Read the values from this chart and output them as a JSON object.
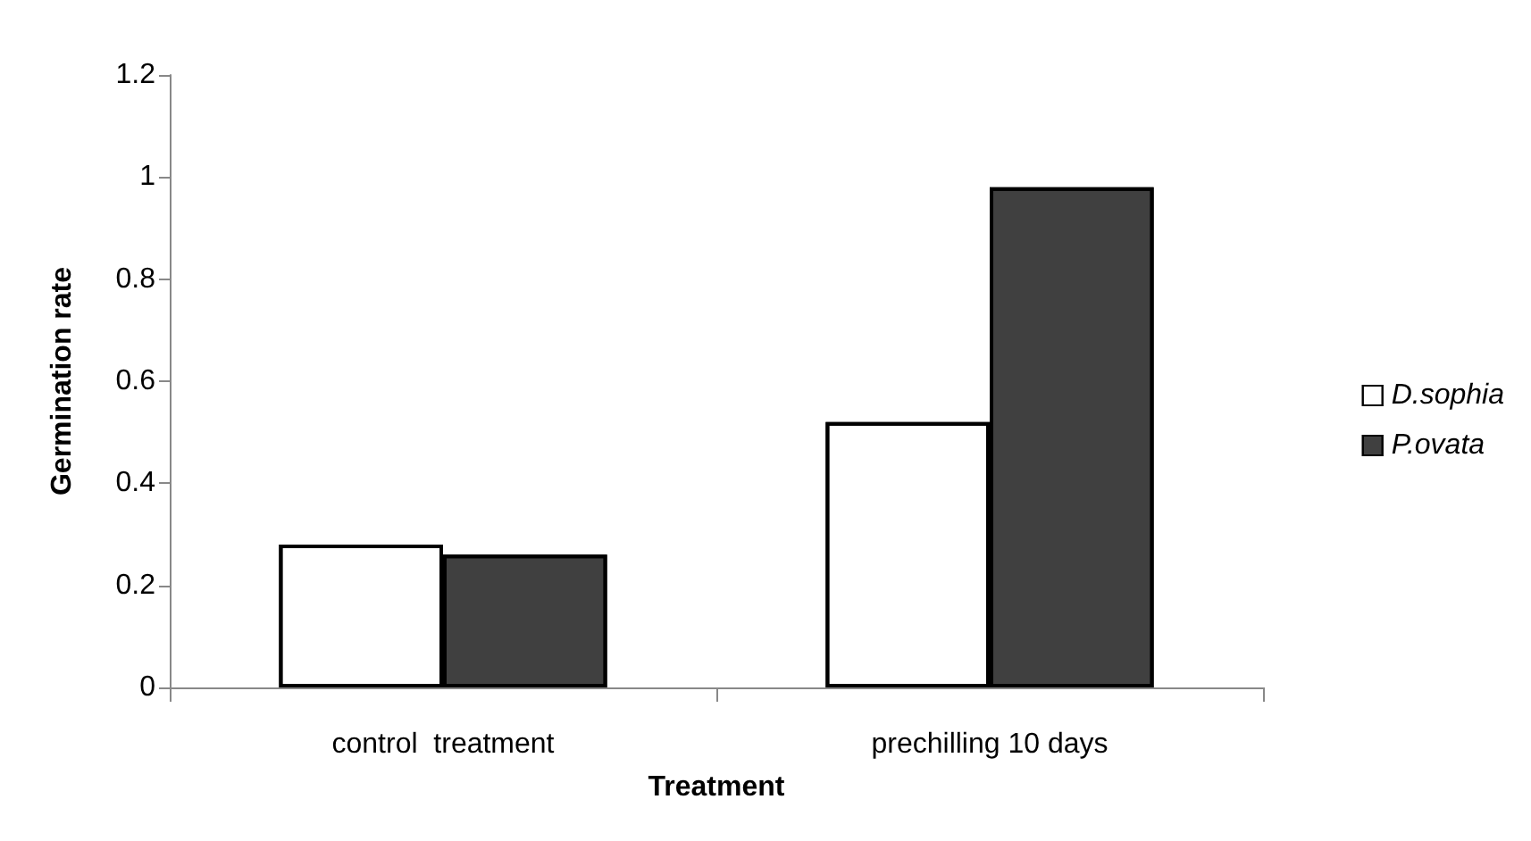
{
  "chart_data": {
    "type": "bar",
    "xlabel": "Treatment",
    "ylabel": "Germination rate",
    "categories": [
      "control  treatment",
      "prechilling 10 days"
    ],
    "series": [
      {
        "name": "D.sophia",
        "color": "#ffffff",
        "values": [
          0.28,
          0.52
        ]
      },
      {
        "name": "P.ovata",
        "color": "#404040",
        "values": [
          0.26,
          0.98
        ]
      }
    ],
    "ylim": [
      0,
      1.2
    ],
    "yticks": [
      0,
      0.2,
      0.4,
      0.6,
      0.8,
      1,
      1.2
    ],
    "grid": false,
    "legend": "right"
  }
}
